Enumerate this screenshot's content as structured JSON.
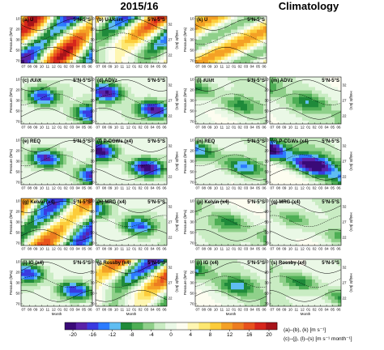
{
  "headers": {
    "left": "2015/16",
    "right": "Climatology"
  },
  "region_label": "5°N-5°S",
  "axes": {
    "ylabel_left": "Pressure (hPa)",
    "ylabel_right": "Height (km)",
    "xlabel": "Month",
    "y_ticks": [
      "10",
      "20",
      "30",
      "50",
      "70"
    ],
    "height_ticks": [
      "32",
      "27",
      "22"
    ],
    "month_ticks": [
      "07",
      "08",
      "09",
      "10",
      "11",
      "12",
      "01",
      "02",
      "03",
      "04",
      "05",
      "06"
    ]
  },
  "units": {
    "line1": "(a)–(b), (k) [m s⁻¹]",
    "line2": "(c)–(j), (l)–(s) [m s⁻¹ month⁻¹]"
  },
  "chart_data": {
    "type": "heatmap",
    "colorbar": {
      "ticks": [
        -20,
        -16,
        -12,
        -8,
        -4,
        0,
        4,
        8,
        12,
        16,
        20
      ],
      "colors": [
        "#3a0a78",
        "#5a23a8",
        "#3a3ae0",
        "#2c7cff",
        "#5fbdf2",
        "#1f8a3a",
        "#4eae55",
        "#8fd08a",
        "#c9ecc3",
        "#eaf8e6",
        "#fdfdf0",
        "#fef6b2",
        "#fde770",
        "#fccc3a",
        "#f4a125",
        "#ed7d20",
        "#e8521d",
        "#d7261c",
        "#a8141a"
      ]
    },
    "panels": [
      {
        "id": "a",
        "label": "(a) U",
        "figure": "2015/16",
        "kind": "wind",
        "phase": 0.0,
        "amp": 19
      },
      {
        "id": "b",
        "label": "(b) U-Uclim",
        "figure": "2015/16",
        "kind": "anomaly",
        "phase": 1.3,
        "amp": 17
      },
      {
        "id": "c",
        "label": "(c) ∂U/∂t",
        "figure": "2015/16",
        "kind": "forcing",
        "phase": 0.6,
        "amp": 12
      },
      {
        "id": "d",
        "label": "(d) ADVz",
        "figure": "2015/16",
        "kind": "forcing",
        "phase": 2.1,
        "amp": 14
      },
      {
        "id": "e",
        "label": "(e) REQ",
        "figure": "2015/16",
        "kind": "forcing",
        "phase": 0.2,
        "amp": 13
      },
      {
        "id": "f",
        "label": "(f) P-CGWs (x4)",
        "figure": "2015/16",
        "kind": "forcing",
        "phase": 3.0,
        "amp": 15
      },
      {
        "id": "g",
        "label": "(g) Kelvin (x4)",
        "figure": "2015/16",
        "kind": "wind",
        "phase": 1.0,
        "amp": 16
      },
      {
        "id": "h",
        "label": "(h) MRG (x4)",
        "figure": "2015/16",
        "kind": "forcing",
        "phase": 4.0,
        "amp": 11
      },
      {
        "id": "i",
        "label": "(i) IG (x4)",
        "figure": "2015/16",
        "kind": "forcing",
        "phase": 2.6,
        "amp": 12
      },
      {
        "id": "j",
        "label": "(j) Rossby (x4)",
        "figure": "2015/16",
        "kind": "anomaly",
        "phase": 5.0,
        "amp": 18
      },
      {
        "id": "k",
        "label": "(k) U",
        "figure": "Climatology",
        "kind": "clim_wind",
        "phase": 0.0,
        "amp": 15
      },
      {
        "id": "l",
        "label": "(l) ∂U/∂t",
        "figure": "Climatology",
        "kind": "clim_forcing",
        "phase": 0.5,
        "amp": 7
      },
      {
        "id": "m",
        "label": "(m) ADVz",
        "figure": "Climatology",
        "kind": "clim_forcing",
        "phase": 1.5,
        "amp": 8
      },
      {
        "id": "n",
        "label": "(n) REQ",
        "figure": "Climatology",
        "kind": "clim_forcing",
        "phase": 0.2,
        "amp": 10
      },
      {
        "id": "o",
        "label": "(o) P-CGWs (x4)",
        "figure": "Climatology",
        "kind": "clim_strong",
        "phase": 0.9,
        "amp": 17
      },
      {
        "id": "p",
        "label": "(p) Kelvin (x4)",
        "figure": "Climatology",
        "kind": "clim_forcing",
        "phase": 2.2,
        "amp": 7
      },
      {
        "id": "q",
        "label": "(q) MRG (x4)",
        "figure": "Climatology",
        "kind": "clim_forcing",
        "phase": 3.4,
        "amp": 5
      },
      {
        "id": "r",
        "label": "(r) IG (x4)",
        "figure": "Climatology",
        "kind": "clim_forcing",
        "phase": 1.1,
        "amp": 9
      },
      {
        "id": "s",
        "label": "(s) Rossby (x4)",
        "figure": "Climatology",
        "kind": "clim_forcing",
        "phase": 2.8,
        "amp": 7
      }
    ]
  }
}
